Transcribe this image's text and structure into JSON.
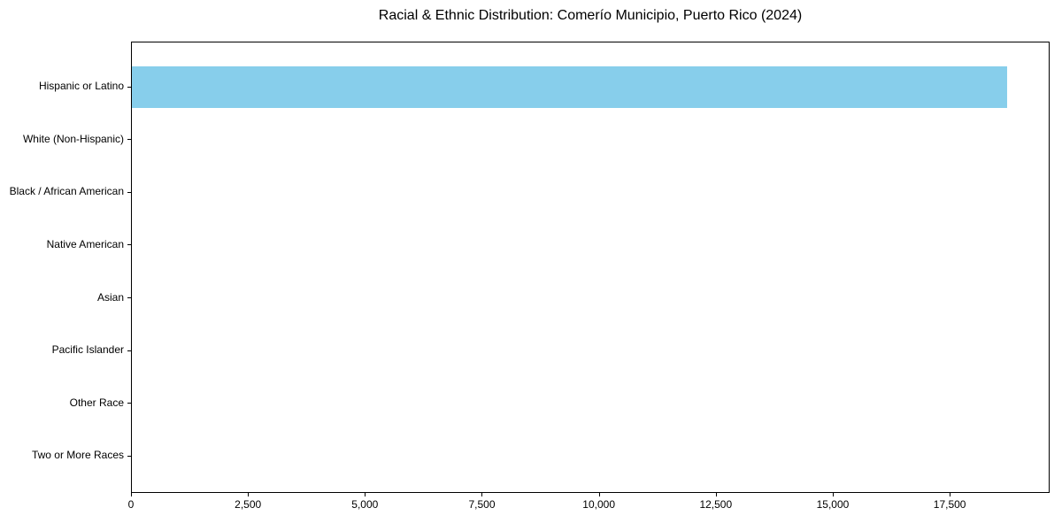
{
  "chart_data": {
    "type": "bar",
    "orientation": "horizontal",
    "title": "Racial & Ethnic Distribution: Comerío Municipio, Puerto Rico (2024)",
    "categories": [
      "Hispanic or Latino",
      "White (Non-Hispanic)",
      "Black / African American",
      "Native American",
      "Asian",
      "Pacific Islander",
      "Other Race",
      "Two or More Races"
    ],
    "values": [
      18700,
      0,
      0,
      0,
      0,
      0,
      0,
      0
    ],
    "xlabel": "",
    "ylabel": "",
    "xlim": [
      0,
      19635
    ],
    "x_ticks": [
      0,
      2500,
      5000,
      7500,
      10000,
      12500,
      15000,
      17500
    ],
    "x_tick_labels": [
      "0",
      "2,500",
      "5,000",
      "7,500",
      "10,000",
      "12,500",
      "15,000",
      "17,500"
    ],
    "grid": false,
    "legend": null,
    "bar_color": "#87CEEB"
  },
  "colors": {
    "bar": "#87CEEB",
    "text": "#000000",
    "spine": "#000000",
    "background": "#ffffff"
  }
}
